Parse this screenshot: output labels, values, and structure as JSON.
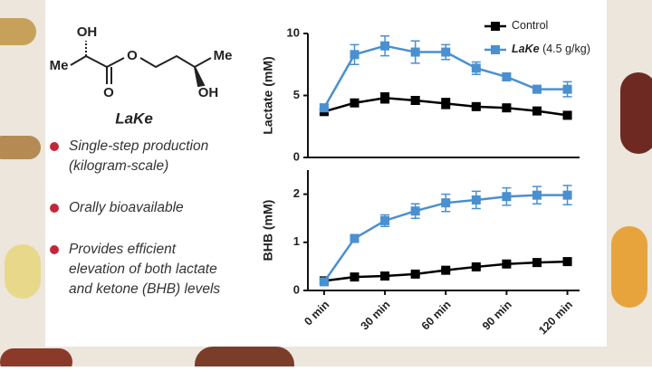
{
  "structure": {
    "label": "LaKe",
    "atoms": [
      "OH",
      "Me",
      "O",
      "O",
      "Me",
      "OH"
    ]
  },
  "bullets": [
    [
      "Single-step production",
      "(kilogram-scale)"
    ],
    [
      "Orally bioavailable"
    ],
    [
      "Provides efficient",
      "elevation of both lactate",
      "and ketone (BHB) levels"
    ]
  ],
  "chart_data": [
    {
      "type": "line",
      "ylabel": "Lactate (mM)",
      "x": [
        0,
        15,
        30,
        45,
        60,
        75,
        90,
        105,
        120
      ],
      "xlim": [
        -8,
        126
      ],
      "ylim": [
        0,
        10
      ],
      "yticks": [
        0,
        5,
        10
      ],
      "legend": "upper right",
      "series": [
        {
          "name": "Control",
          "color": "#000000",
          "values": [
            3.7,
            4.4,
            4.8,
            4.6,
            4.35,
            4.1,
            4.0,
            3.75,
            3.4
          ],
          "errors": [
            0.2,
            0.2,
            0.4,
            0.3,
            0.4,
            0.2,
            0.2,
            0.2,
            0.2
          ]
        },
        {
          "name": "LaKe",
          "note": "(4.5 g/kg)",
          "color": "#4a90d0",
          "values": [
            4.0,
            8.3,
            9.0,
            8.5,
            8.5,
            7.2,
            6.5,
            5.5,
            5.5
          ],
          "errors": [
            0.3,
            0.8,
            0.8,
            0.9,
            0.6,
            0.5,
            0.3,
            0.3,
            0.6
          ]
        }
      ]
    },
    {
      "type": "line",
      "ylabel": "BHB (mM)",
      "x": [
        0,
        15,
        30,
        45,
        60,
        75,
        90,
        105,
        120
      ],
      "xlim": [
        -8,
        126
      ],
      "xticks": [
        {
          "value": 0,
          "label": "0 min"
        },
        {
          "value": 30,
          "label": "30 min"
        },
        {
          "value": 60,
          "label": "60 min"
        },
        {
          "value": 90,
          "label": "90 min"
        },
        {
          "value": 120,
          "label": "120 min"
        }
      ],
      "ylim": [
        0,
        2.5
      ],
      "yticks": [
        0,
        1,
        2
      ],
      "series": [
        {
          "color": "#000000",
          "values": [
            0.2,
            0.28,
            0.3,
            0.34,
            0.42,
            0.49,
            0.55,
            0.58,
            0.6
          ],
          "errors": [
            0.03,
            0.03,
            0.03,
            0.03,
            0.03,
            0.03,
            0.04,
            0.04,
            0.04
          ]
        },
        {
          "color": "#4a90d0",
          "values": [
            0.18,
            1.08,
            1.45,
            1.65,
            1.82,
            1.88,
            1.95,
            1.98,
            1.98
          ],
          "errors": [
            0.05,
            0.08,
            0.12,
            0.15,
            0.18,
            0.18,
            0.18,
            0.18,
            0.2
          ]
        }
      ]
    }
  ]
}
